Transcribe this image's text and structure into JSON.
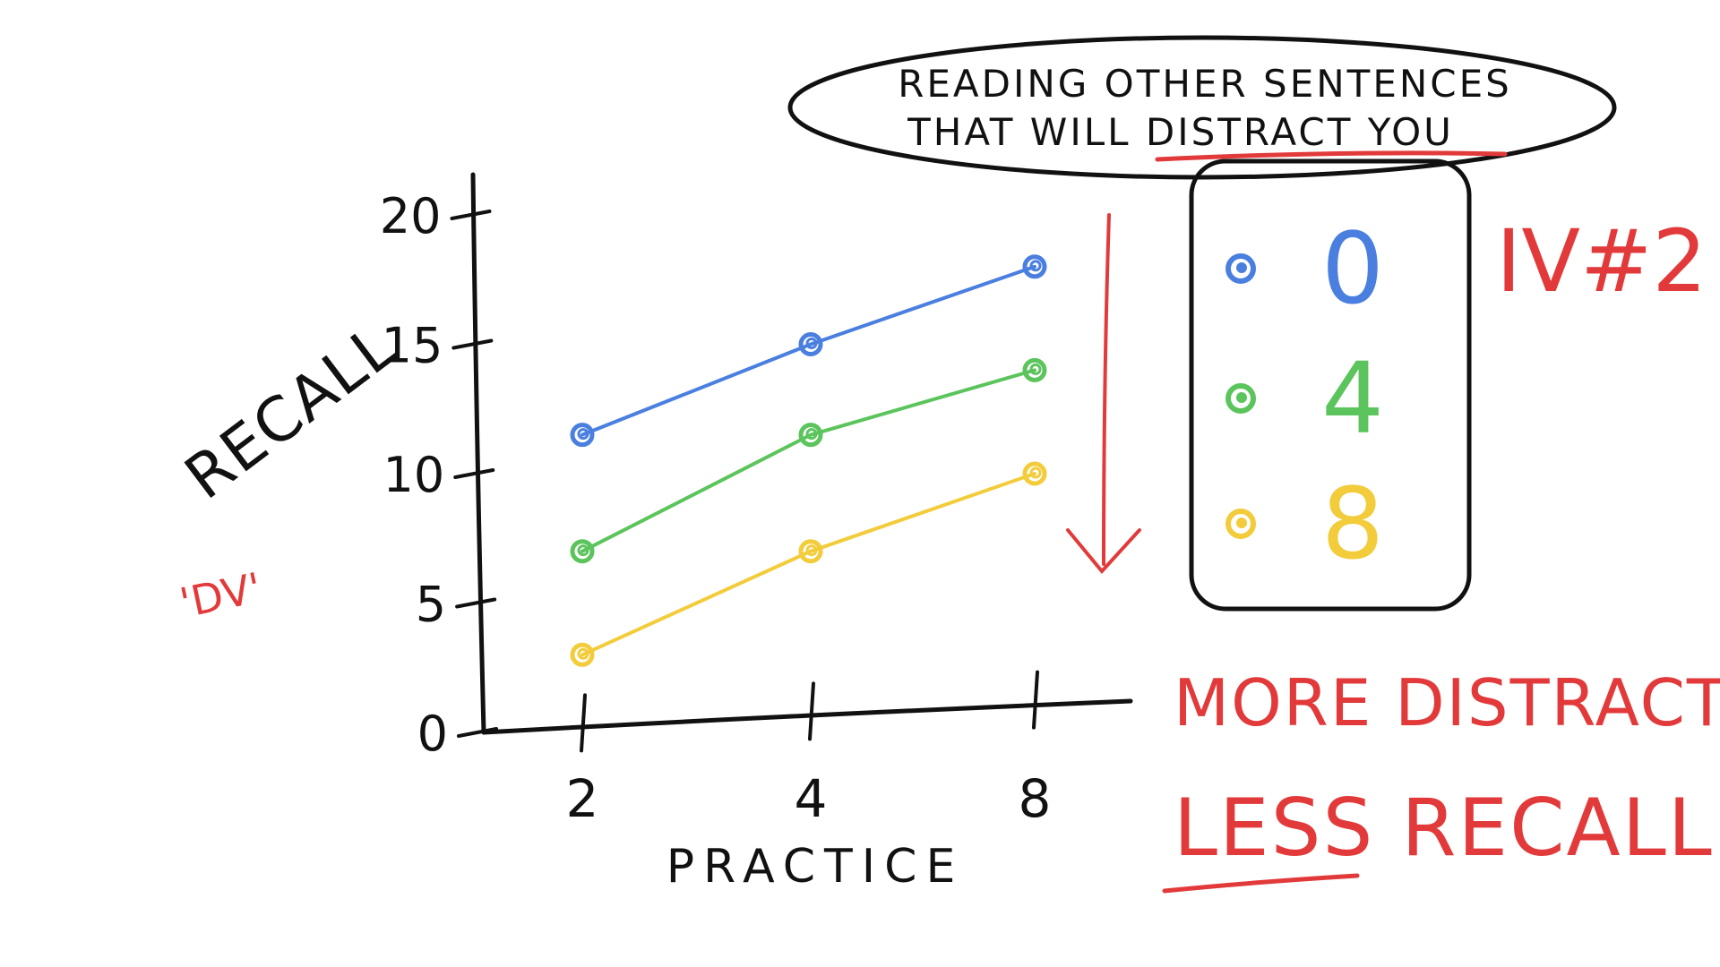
{
  "chart_data": {
    "type": "line",
    "x": [
      2,
      4,
      8
    ],
    "categories": [
      "2",
      "4",
      "8"
    ],
    "series": [
      {
        "name": "0",
        "color": "#4a7fe0",
        "values": [
          11.5,
          15.0,
          18.0
        ]
      },
      {
        "name": "4",
        "color": "#5cc45c",
        "values": [
          7.0,
          11.5,
          14.0
        ]
      },
      {
        "name": "8",
        "color": "#f2cc3a",
        "values": [
          3.0,
          7.0,
          10.0
        ]
      }
    ],
    "title": "",
    "xlabel": "PRACTICE",
    "ylabel": "RECALL",
    "ylabel_note": "'DV'",
    "ylim": [
      0,
      20
    ],
    "yticks": [
      "0",
      "5",
      "10",
      "15",
      "20"
    ],
    "grid": false,
    "legend": {
      "placement": "right",
      "title": "READING OTHER SENTENCES THAT WILL DISTRACT YOU",
      "title_line1": "READING OTHER SENTENCES",
      "title_line2": "THAT WILL DISTRACT YOU",
      "tag": "IV#2"
    },
    "annotations": {
      "trend_line1": "MORE DISTRACTION",
      "trend_line2": "LESS RECALL"
    }
  },
  "colors": {
    "ink": "#111111",
    "red": "#e23a3a"
  }
}
